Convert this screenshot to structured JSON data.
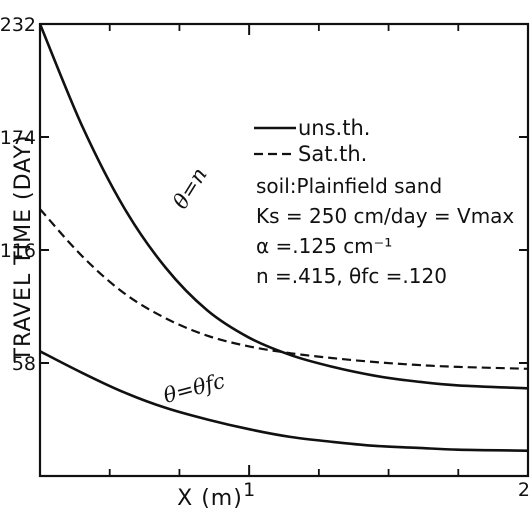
{
  "chart_data": {
    "type": "line",
    "xlabel": "X (m)",
    "ylabel": "TRAVEL TIME (DAY)",
    "xlim": [
      0.25,
      2
    ],
    "ylim": [
      0,
      232
    ],
    "x_ticks": [
      {
        "value": 1,
        "label": "1"
      },
      {
        "value": 2,
        "label": "2"
      }
    ],
    "x_minor_ticks": [
      0.5,
      0.75,
      1.25,
      1.5,
      1.75
    ],
    "y_ticks": [
      {
        "value": 58,
        "label": "58"
      },
      {
        "value": 116,
        "label": "116"
      },
      {
        "value": 174,
        "label": "174"
      },
      {
        "value": 232,
        "label": "232"
      }
    ],
    "series": [
      {
        "name": "uns.th.",
        "style": "solid",
        "curve_label": "θ=n",
        "x": [
          0.25,
          0.4,
          0.55,
          0.7,
          0.85,
          1.0,
          1.15,
          1.3,
          1.45,
          1.6,
          1.75,
          2.0
        ],
        "y": [
          232,
          180,
          138,
          107,
          85,
          71,
          62,
          56,
          51.5,
          48.5,
          46.5,
          45
        ]
      },
      {
        "name": "Sat.th.",
        "style": "dashed",
        "x": [
          0.25,
          0.4,
          0.55,
          0.7,
          0.85,
          1.0,
          1.15,
          1.3,
          1.45,
          1.6,
          1.75,
          2.0
        ],
        "y": [
          137,
          113,
          94,
          81,
          72,
          66.5,
          63,
          60.5,
          58.5,
          57,
          56,
          55
        ]
      },
      {
        "name": "",
        "style": "solid",
        "curve_label": "θ=θfc",
        "x": [
          0.25,
          0.4,
          0.55,
          0.7,
          0.85,
          1.0,
          1.15,
          1.3,
          1.45,
          1.6,
          1.75,
          2.0
        ],
        "y": [
          64,
          53,
          43,
          35,
          29,
          24,
          20,
          17.5,
          15.5,
          14.5,
          13.5,
          13
        ]
      }
    ],
    "legend": {
      "placement": "top-right",
      "entries": [
        {
          "label": "uns.th.",
          "style": "solid"
        },
        {
          "label": "Sat.th.",
          "style": "dashed"
        }
      ]
    },
    "annotations": [
      "soil:Plainfield sand",
      "Ks = 250 cm/day = Vmax",
      "α =.125 cm⁻¹",
      "n =.415, θfc =.120"
    ],
    "grid": false,
    "colors": {
      "line": "#111111",
      "background": "#ffffff"
    }
  }
}
